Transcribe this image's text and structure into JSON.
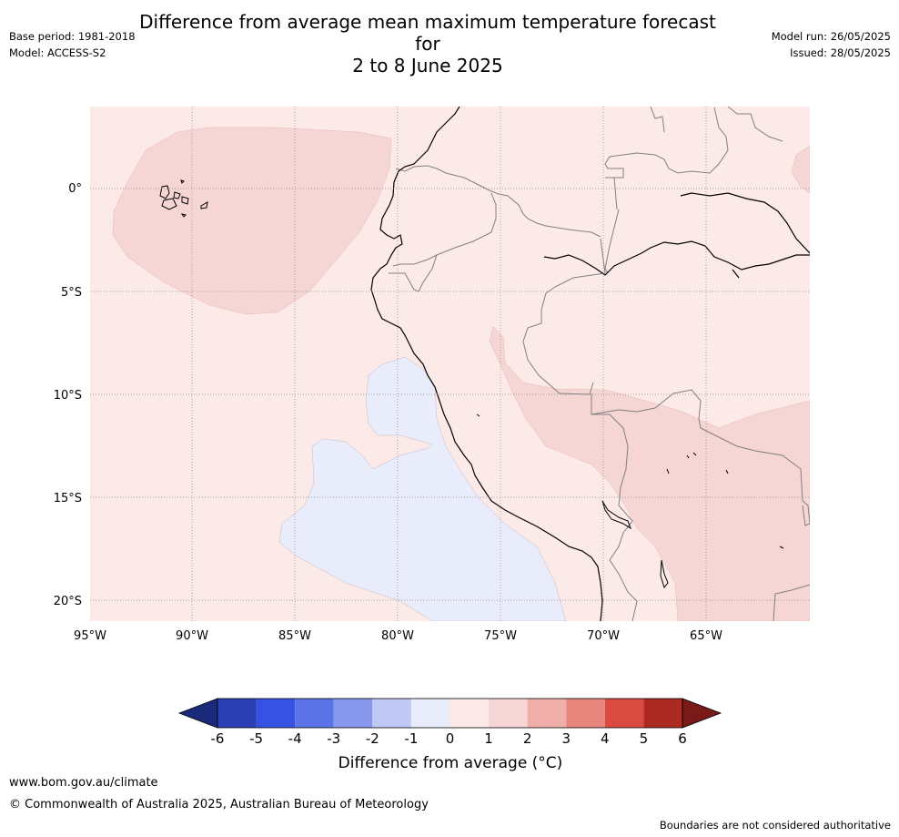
{
  "title_line1": "Difference from average mean maximum temperature forecast for",
  "title_line2": "2 to 8 June 2025",
  "base_period": "Base period: 1981-2018",
  "model": "Model: ACCESS-S2",
  "model_run": "Model run: 26/05/2025",
  "issued": "Issued: 28/05/2025",
  "map": {
    "lon_labels": [
      "95°W",
      "90°W",
      "85°W",
      "80°W",
      "75°W",
      "70°W",
      "65°W"
    ],
    "lat_labels": [
      "0°",
      "5°S",
      "10°S",
      "15°S",
      "20°S"
    ]
  },
  "colorbar": {
    "ticks": [
      "-6",
      "-5",
      "-4",
      "-3",
      "-2",
      "-1",
      "0",
      "1",
      "2",
      "3",
      "4",
      "5",
      "6"
    ],
    "colors": [
      "#1a2a7a",
      "#2a3fb3",
      "#3552e2",
      "#5a74e8",
      "#8697ec",
      "#c0c9f5",
      "#e8ecfb",
      "#fceae8",
      "#f6d6d4",
      "#efaeaa",
      "#e8867e",
      "#d94b3e",
      "#ad2a22",
      "#7a1a18"
    ],
    "label": "Difference from average (°C)"
  },
  "footer_url": "www.bom.gov.au/climate",
  "footer_copyright": "© Commonwealth of Australia 2025, Australian Bureau of Meteorology",
  "footnote": "Boundaries are not considered authoritative"
}
